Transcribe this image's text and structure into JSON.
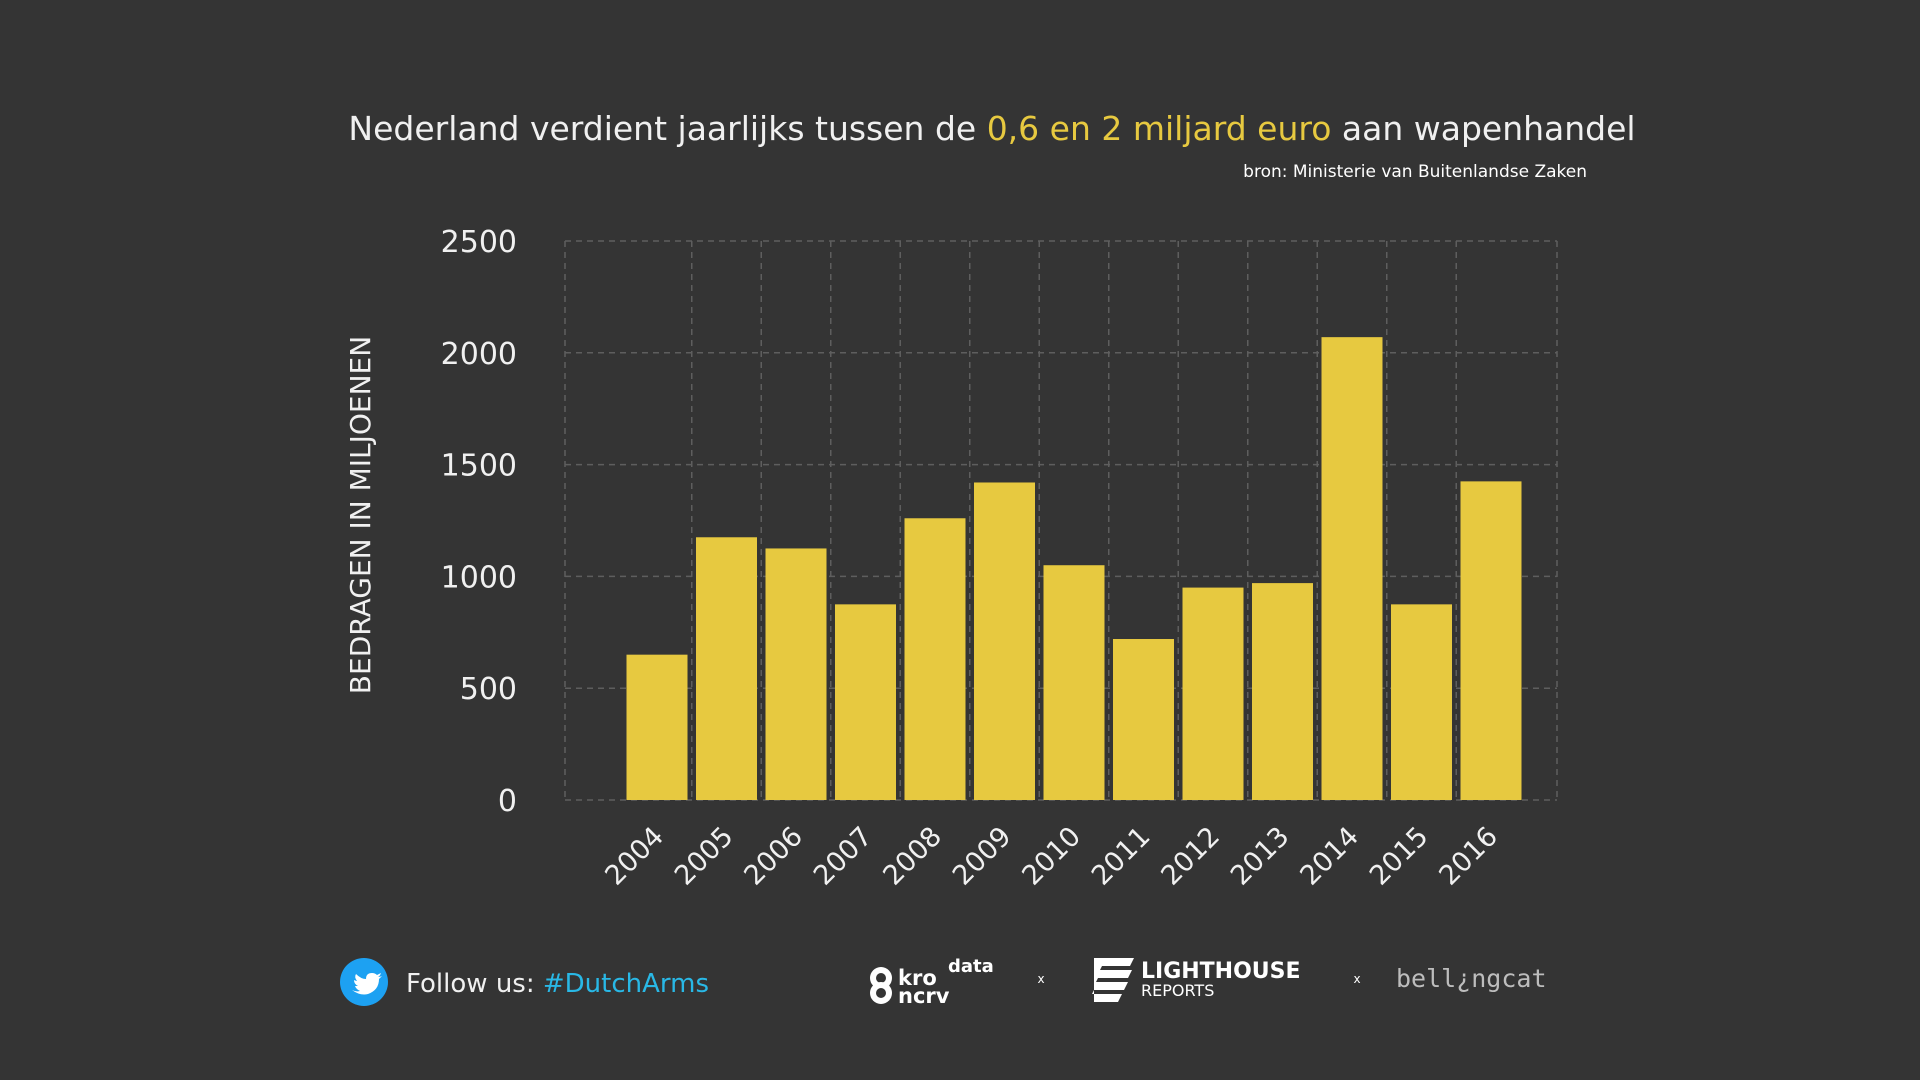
{
  "title": {
    "prefix": "Nederland verdient jaarlijks tussen de ",
    "highlight": "0,6 en 2 miljard euro",
    "suffix": " aan wapenhandel"
  },
  "source": "bron: Ministerie van Buitenlandse Zaken",
  "colors": {
    "background": "#343434",
    "bar": "#e7c940",
    "highlight": "#e7c940",
    "text": "#f0f0f0",
    "grid": "#5e5e5e",
    "hashtag": "#29b8e6",
    "twitter": "#1da1f2"
  },
  "chart_data": {
    "type": "bar",
    "title": "Nederland verdient jaarlijks tussen de 0,6 en 2 miljard euro aan wapenhandel",
    "categories": [
      "2004",
      "2005",
      "2006",
      "2007",
      "2008",
      "2009",
      "2010",
      "2011",
      "2012",
      "2013",
      "2014",
      "2015",
      "2016"
    ],
    "values": [
      650,
      1175,
      1125,
      875,
      1260,
      1420,
      1050,
      720,
      950,
      970,
      2070,
      875,
      1425
    ],
    "ylabel": "BEDRAGEN IN MILJOENEN",
    "xlabel": "",
    "ylim": [
      0,
      2500
    ],
    "yticks": [
      0,
      500,
      1000,
      1500,
      2000,
      2500
    ],
    "grid": true
  },
  "footer": {
    "twitter_icon": "twitter-bird-icon",
    "follow_label": "Follow us: ",
    "hashtag": "#DutchArms",
    "logos": {
      "kro_top": "kro",
      "kro_bottom": "ncrv",
      "kro_data": "data",
      "separator": "x",
      "lighthouse_top": "LIGHTHOUSE",
      "lighthouse_bottom": "REPORTS",
      "bellingcat": "bell¿ngcat"
    }
  }
}
